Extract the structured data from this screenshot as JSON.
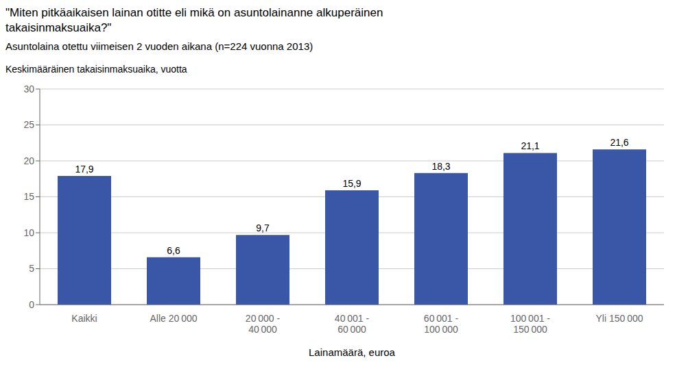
{
  "chart_data": {
    "type": "bar",
    "title": "\"Miten pitkäaikaisen lainan otitte eli mikä on asuntolainanne alkuperäinen\ntakaisinmaksuaika?\"",
    "subtitle": "Asuntolaina otettu viimeisen 2 vuoden aikana (n=224 vuonna 2013)",
    "ylabel": "Keskimääräinen takaisinmaksuaika, vuotta",
    "xlabel": "Lainamäärä, euroa",
    "categories": [
      "Kaikki",
      "Alle 20 000",
      "20 000 -\n40 000",
      "40 001 -\n60 000",
      "60 001 -\n100 000",
      "100 001 -\n150 000",
      "Yli 150 000"
    ],
    "values": [
      17.9,
      6.6,
      9.7,
      15.9,
      18.3,
      21.1,
      21.6
    ],
    "value_labels": [
      "17,9",
      "6,6",
      "9,7",
      "15,9",
      "18,3",
      "21,1",
      "21,6"
    ],
    "data_labels": true,
    "color": "#3A57A7",
    "ylim": [
      0,
      30
    ],
    "yticks": [
      0,
      5,
      10,
      15,
      20,
      25,
      30
    ],
    "grid": true
  }
}
